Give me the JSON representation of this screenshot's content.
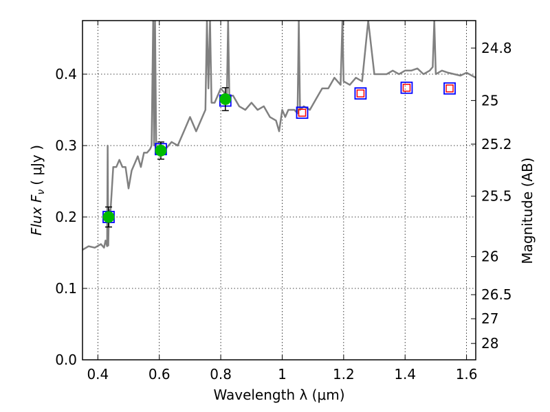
{
  "chart_data": {
    "type": "scatter",
    "xlabel": "Wavelength  λ (μm)",
    "ylabel": "Flux  F",
    "ylabel_sub": "ν",
    "ylabel_unit": "( μJy )",
    "y2label": "Magnitude (AB)",
    "xlim": [
      0.35,
      1.63
    ],
    "ylim": [
      0.0,
      0.475
    ],
    "grid": true,
    "x_ticks": [
      {
        "v": 0.4,
        "label": "0.4"
      },
      {
        "v": 0.6,
        "label": "0.6"
      },
      {
        "v": 0.8,
        "label": "0.8"
      },
      {
        "v": 1.0,
        "label": "1"
      },
      {
        "v": 1.2,
        "label": "1.2"
      },
      {
        "v": 1.4,
        "label": "1.4"
      },
      {
        "v": 1.6,
        "label": "1.6"
      }
    ],
    "y_ticks": [
      {
        "v": 0.0,
        "label": "0.0"
      },
      {
        "v": 0.1,
        "label": "0.1"
      },
      {
        "v": 0.2,
        "label": "0.2"
      },
      {
        "v": 0.3,
        "label": "0.3"
      },
      {
        "v": 0.4,
        "label": "0.4"
      }
    ],
    "y2_ticks": [
      {
        "v": 24.8,
        "label": "24.8"
      },
      {
        "v": 25.0,
        "label": "25"
      },
      {
        "v": 25.2,
        "label": "25.2"
      },
      {
        "v": 25.5,
        "label": "25.5"
      },
      {
        "v": 26.0,
        "label": "26"
      },
      {
        "v": 26.5,
        "label": "26.5"
      },
      {
        "v": 27.0,
        "label": "27"
      },
      {
        "v": 28.0,
        "label": "28"
      }
    ],
    "model_spectrum": {
      "color": "#808080",
      "x": [
        0.35,
        0.37,
        0.39,
        0.41,
        0.42,
        0.425,
        0.43,
        0.432,
        0.434,
        0.436,
        0.44,
        0.45,
        0.46,
        0.47,
        0.48,
        0.49,
        0.5,
        0.51,
        0.52,
        0.53,
        0.54,
        0.55,
        0.56,
        0.57,
        0.575,
        0.58,
        0.583,
        0.586,
        0.59,
        0.6,
        0.62,
        0.64,
        0.66,
        0.68,
        0.7,
        0.72,
        0.74,
        0.75,
        0.755,
        0.76,
        0.765,
        0.77,
        0.78,
        0.8,
        0.82,
        0.824,
        0.828,
        0.84,
        0.86,
        0.88,
        0.9,
        0.92,
        0.94,
        0.96,
        0.98,
        0.99,
        1.0,
        1.01,
        1.02,
        1.04,
        1.05,
        1.054,
        1.058,
        1.07,
        1.09,
        1.11,
        1.13,
        1.15,
        1.17,
        1.19,
        1.196,
        1.2,
        1.22,
        1.24,
        1.26,
        1.28,
        1.3,
        1.32,
        1.34,
        1.36,
        1.38,
        1.4,
        1.42,
        1.44,
        1.46,
        1.48,
        1.49,
        1.495,
        1.5,
        1.52,
        1.54,
        1.56,
        1.58,
        1.6,
        1.63
      ],
      "y": [
        0.154,
        0.159,
        0.157,
        0.162,
        0.157,
        0.167,
        0.159,
        0.3,
        0.16,
        0.21,
        0.2,
        0.27,
        0.27,
        0.28,
        0.27,
        0.27,
        0.24,
        0.265,
        0.275,
        0.285,
        0.27,
        0.29,
        0.29,
        0.295,
        0.3,
        0.475,
        0.3,
        0.475,
        0.29,
        0.29,
        0.295,
        0.305,
        0.3,
        0.32,
        0.34,
        0.32,
        0.34,
        0.35,
        0.475,
        0.38,
        0.475,
        0.36,
        0.36,
        0.38,
        0.37,
        0.475,
        0.37,
        0.37,
        0.355,
        0.35,
        0.36,
        0.35,
        0.355,
        0.34,
        0.335,
        0.32,
        0.35,
        0.34,
        0.35,
        0.35,
        0.345,
        0.475,
        0.35,
        0.355,
        0.35,
        0.365,
        0.38,
        0.38,
        0.395,
        0.385,
        0.475,
        0.39,
        0.385,
        0.395,
        0.39,
        0.475,
        0.4,
        0.4,
        0.4,
        0.405,
        0.4,
        0.405,
        0.405,
        0.408,
        0.4,
        0.405,
        0.41,
        0.475,
        0.4,
        0.405,
        0.402,
        0.4,
        0.398,
        0.402,
        0.395
      ]
    },
    "observed": {
      "color": "#00bb00",
      "points": [
        {
          "x": 0.435,
          "y": 0.2,
          "err": 0.014
        },
        {
          "x": 0.605,
          "y": 0.293,
          "err": 0.012
        },
        {
          "x": 0.815,
          "y": 0.365,
          "err": 0.016
        }
      ]
    },
    "model_photometry": {
      "color": "#0000ff",
      "points": [
        {
          "x": 0.435,
          "y": 0.2
        },
        {
          "x": 0.605,
          "y": 0.295
        },
        {
          "x": 0.815,
          "y": 0.363
        },
        {
          "x": 1.065,
          "y": 0.346
        },
        {
          "x": 1.255,
          "y": 0.373
        },
        {
          "x": 1.405,
          "y": 0.381
        },
        {
          "x": 1.545,
          "y": 0.38
        }
      ]
    },
    "upper_limits": {
      "color": "#ff0000",
      "points": [
        {
          "x": 1.065,
          "y": 0.346
        },
        {
          "x": 1.255,
          "y": 0.373
        },
        {
          "x": 1.405,
          "y": 0.381
        },
        {
          "x": 1.545,
          "y": 0.38
        }
      ]
    }
  }
}
